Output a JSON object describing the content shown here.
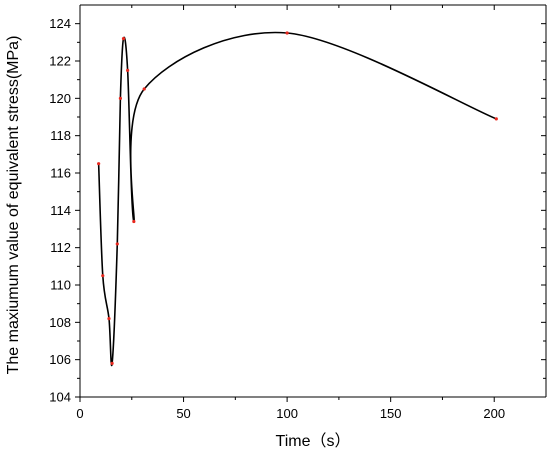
{
  "chart_data": {
    "type": "line",
    "title": "",
    "xlabel": "Time（s）",
    "ylabel": "The maxiumum value of equivalent stress(MPa)",
    "xlim": [
      0,
      225
    ],
    "ylim": [
      104,
      125
    ],
    "xticks": [
      0,
      50,
      100,
      150,
      200
    ],
    "yticks": [
      104,
      106,
      108,
      110,
      112,
      114,
      116,
      118,
      120,
      122,
      124
    ],
    "grid": false,
    "legend": "none",
    "colors": {
      "line": "#000000",
      "marker": "#e8281e"
    },
    "series": [
      {
        "x": [
          9,
          11,
          14,
          15.5,
          18,
          19.5,
          21,
          23,
          26,
          31,
          100,
          201
        ],
        "y": [
          116.5,
          110.5,
          108.2,
          105.8,
          112.2,
          120.0,
          123.2,
          121.5,
          113.4,
          120.5,
          123.5,
          118.9
        ]
      }
    ]
  }
}
